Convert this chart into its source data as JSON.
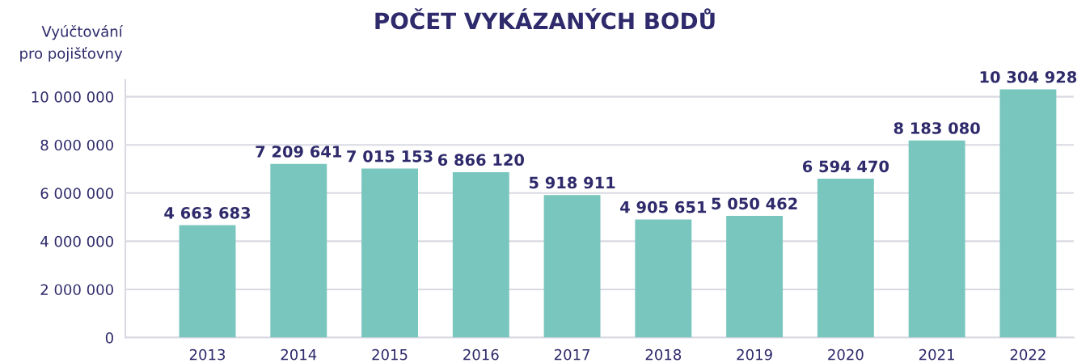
{
  "chart_data": {
    "type": "bar",
    "title": "POČET VYKÁZANÝCH BODŮ",
    "ylabel": "Vyúčtování\npro pojišťovny",
    "categories": [
      "2013",
      "2014",
      "2015",
      "2016",
      "2017",
      "2018",
      "2019",
      "2020",
      "2021",
      "2022"
    ],
    "values": [
      4663683,
      7209641,
      7015153,
      6866120,
      5918911,
      4905651,
      5050462,
      6594470,
      8183080,
      10304928
    ],
    "value_labels": [
      "4 663 683",
      "7 209 641",
      "7 015 153",
      "6 866 120",
      "5 918 911",
      "4 905 651",
      "5 050 462",
      "6 594 470",
      "8 183 080",
      "10 304 928"
    ],
    "color": "#79c6be",
    "ylim": [
      0,
      10700000
    ],
    "yticks": [
      0,
      {
        "value": 2000000,
        "label": "2 000 000"
      },
      {
        "value": 4000000,
        "label": "4 000 000"
      },
      {
        "value": 6000000,
        "label": "6 000 000"
      },
      {
        "value": 8000000,
        "label": "8 000 000"
      },
      {
        "value": 10000000,
        "label": "10 000 000"
      }
    ],
    "grid": "y",
    "legend": false
  }
}
